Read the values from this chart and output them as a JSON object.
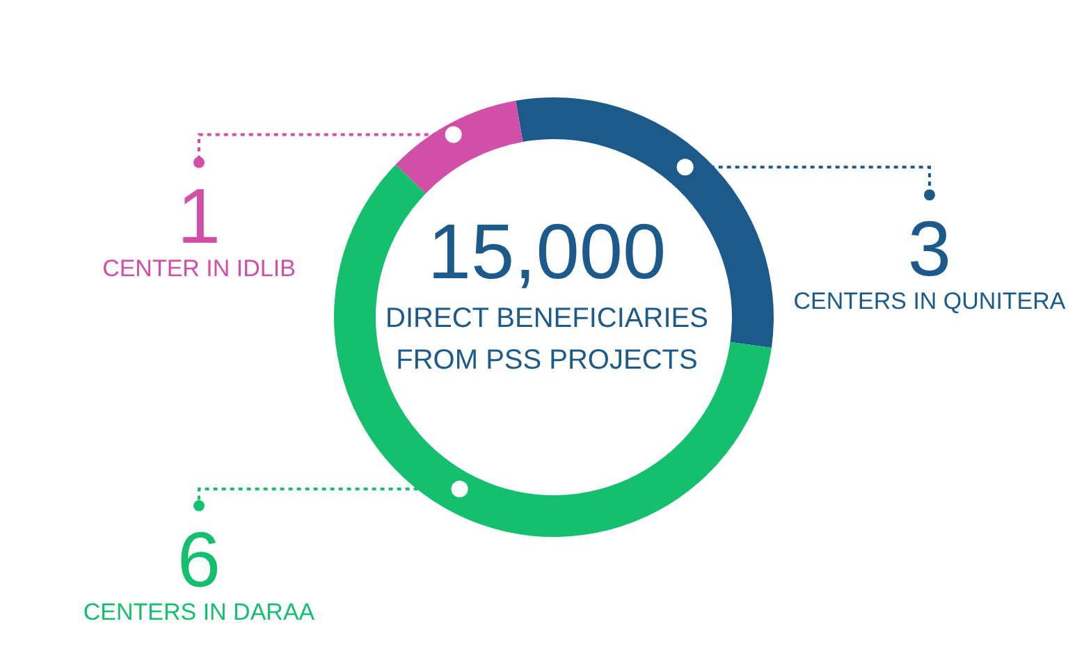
{
  "chart_data": {
    "type": "donut",
    "title": "15,000",
    "subtitle": "DIRECT BENEFICIARIES FROM PSS PROJECTS",
    "categories": [
      "CENTERS IN QUNITERA",
      "CENTERS IN DARAA",
      "CENTER IN IDLIB"
    ],
    "values": [
      3,
      6,
      1
    ],
    "colors": [
      "#1c5a8c",
      "#14bf6e",
      "#d14fa7"
    ],
    "data_labels": true
  }
}
